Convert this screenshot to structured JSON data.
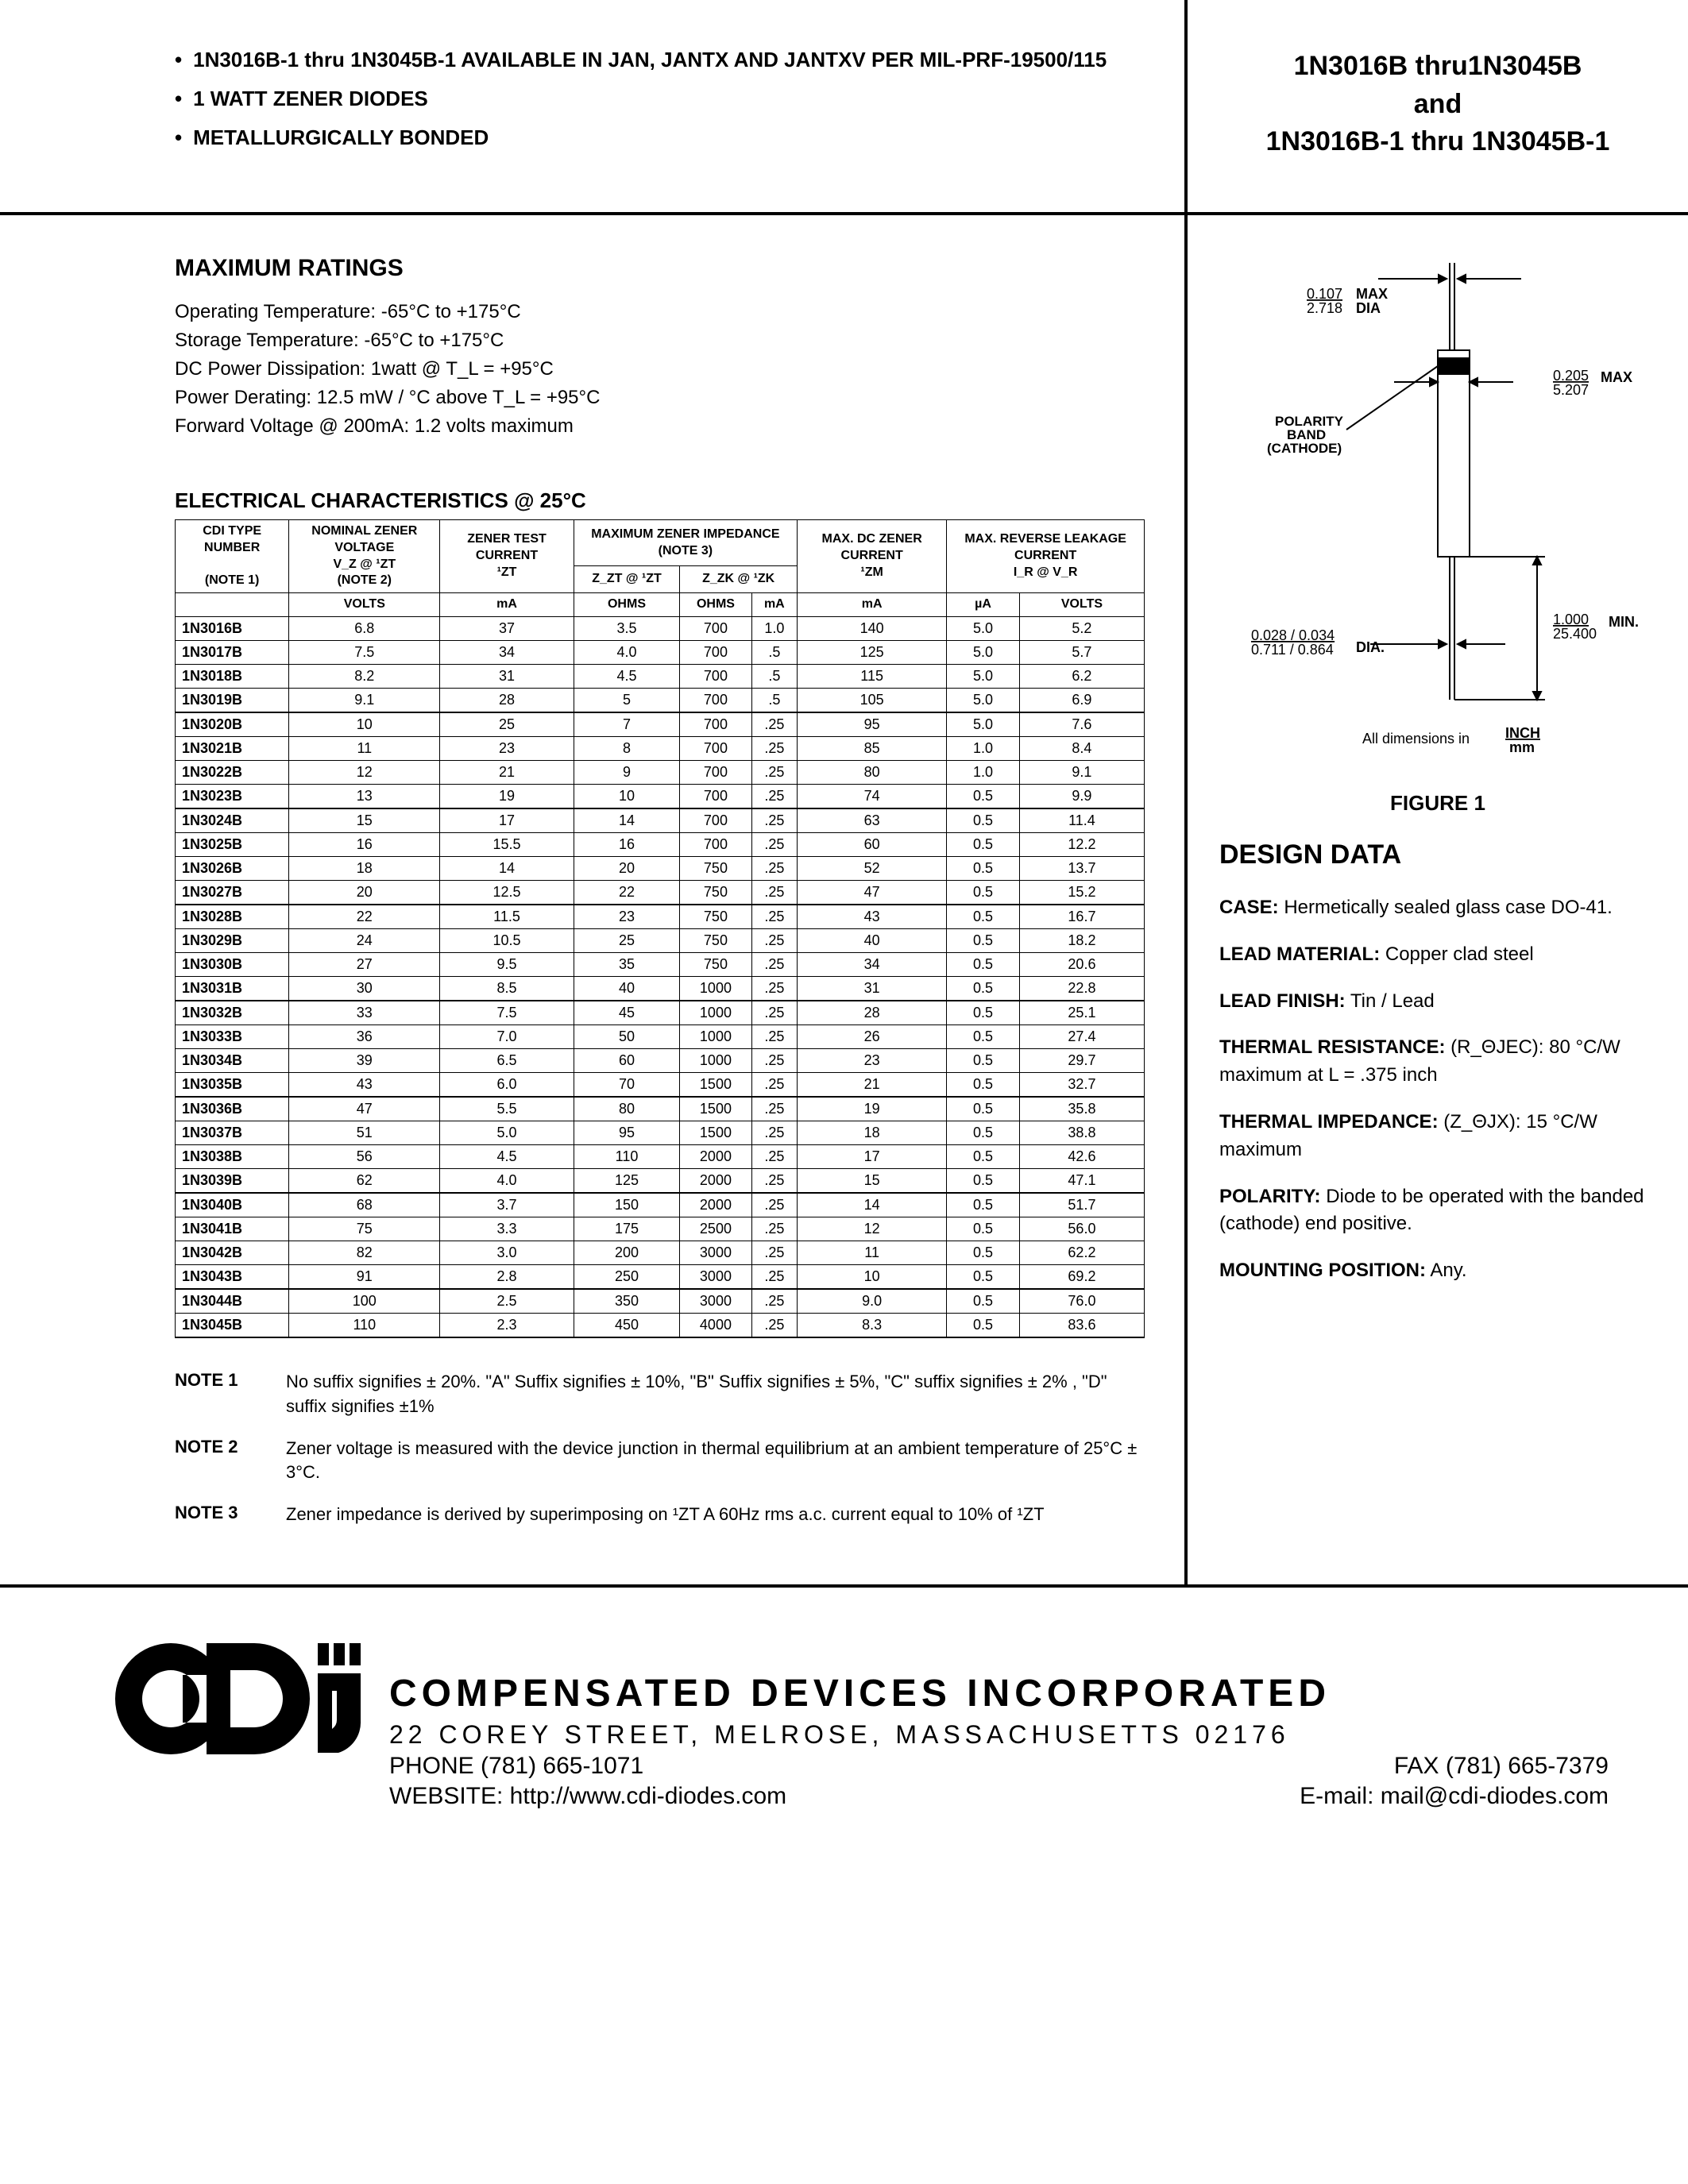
{
  "header": {
    "bullets": [
      "1N3016B-1 thru 1N3045B-1 AVAILABLE IN JAN, JANTX AND JANTXV PER MIL-PRF-19500/115",
      "1 WATT ZENER DIODES",
      "METALLURGICALLY BONDED"
    ],
    "title_lines": [
      "1N3016B thru1N3045B",
      "and",
      "1N3016B-1 thru 1N3045B-1"
    ]
  },
  "max_ratings": {
    "title": "MAXIMUM RATINGS",
    "lines": [
      "Operating Temperature:  -65°C to +175°C",
      "Storage Temperature:  -65°C to +175°C",
      "DC Power Dissipation:  1watt @ T_L = +95°C",
      "Power Derating: 12.5 mW / °C above T_L = +95°C",
      "Forward Voltage @ 200mA: 1.2 volts maximum"
    ]
  },
  "elec": {
    "title": "ELECTRICAL CHARACTERISTICS @ 25°C",
    "headers": {
      "c1": "CDI TYPE NUMBER",
      "c1n": "(NOTE 1)",
      "c2": "NOMINAL ZENER VOLTAGE",
      "c2s": "V_Z @ ¹ZT",
      "c2n": "(NOTE 2)",
      "c3": "ZENER TEST CURRENT",
      "c3s": "¹ZT",
      "c45": "MAXIMUM  ZENER IMPEDANCE (NOTE 3)",
      "c4": "Z_ZT @ ¹ZT",
      "c5": "Z_ZK @ ¹ZK",
      "c6": "MAX. DC ZENER CURRENT",
      "c6s": "¹ZM",
      "c78": "MAX. REVERSE LEAKAGE CURRENT",
      "c78s": "I_R @ V_R",
      "u1": "VOLTS",
      "u2": "mA",
      "u3": "OHMS",
      "u4": "OHMS",
      "u5": "mA",
      "u6": "mA",
      "u7": "µA",
      "u8": "VOLTS"
    },
    "rows": [
      {
        "p": "1N3016B",
        "v": [
          6.8,
          37,
          3.5,
          700,
          "1.0",
          140,
          "5.0",
          5.2
        ]
      },
      {
        "p": "1N3017B",
        "v": [
          7.5,
          34,
          "4.0",
          700,
          ".5",
          125,
          "5.0",
          5.7
        ]
      },
      {
        "p": "1N3018B",
        "v": [
          8.2,
          31,
          4.5,
          700,
          ".5",
          115,
          "5.0",
          6.2
        ]
      },
      {
        "p": "1N3019B",
        "v": [
          9.1,
          28,
          5,
          700,
          ".5",
          105,
          "5.0",
          6.9
        ],
        "end": true
      },
      {
        "p": "1N3020B",
        "v": [
          10,
          25,
          7,
          700,
          ".25",
          95,
          "5.0",
          7.6
        ]
      },
      {
        "p": "1N3021B",
        "v": [
          11,
          23,
          8,
          700,
          ".25",
          85,
          "1.0",
          8.4
        ]
      },
      {
        "p": "1N3022B",
        "v": [
          12,
          21,
          9,
          700,
          ".25",
          80,
          "1.0",
          9.1
        ]
      },
      {
        "p": "1N3023B",
        "v": [
          13,
          19,
          10,
          700,
          ".25",
          74,
          0.5,
          9.9
        ],
        "end": true
      },
      {
        "p": "1N3024B",
        "v": [
          15,
          17,
          14,
          700,
          ".25",
          63,
          0.5,
          11.4
        ]
      },
      {
        "p": "1N3025B",
        "v": [
          16,
          15.5,
          16,
          700,
          ".25",
          60,
          0.5,
          12.2
        ]
      },
      {
        "p": "1N3026B",
        "v": [
          18,
          14,
          20,
          750,
          ".25",
          52,
          0.5,
          13.7
        ]
      },
      {
        "p": "1N3027B",
        "v": [
          20,
          12.5,
          22,
          750,
          ".25",
          47,
          0.5,
          15.2
        ],
        "end": true
      },
      {
        "p": "1N3028B",
        "v": [
          22,
          11.5,
          23,
          750,
          ".25",
          43,
          0.5,
          16.7
        ]
      },
      {
        "p": "1N3029B",
        "v": [
          24,
          10.5,
          25,
          750,
          ".25",
          40,
          0.5,
          18.2
        ]
      },
      {
        "p": "1N3030B",
        "v": [
          27,
          9.5,
          35,
          750,
          ".25",
          34,
          0.5,
          20.6
        ]
      },
      {
        "p": "1N3031B",
        "v": [
          30,
          8.5,
          40,
          1000,
          ".25",
          31,
          0.5,
          22.8
        ],
        "end": true
      },
      {
        "p": "1N3032B",
        "v": [
          33,
          7.5,
          45,
          1000,
          ".25",
          28,
          0.5,
          25.1
        ]
      },
      {
        "p": "1N3033B",
        "v": [
          36,
          "7.0",
          50,
          1000,
          ".25",
          26,
          0.5,
          27.4
        ]
      },
      {
        "p": "1N3034B",
        "v": [
          39,
          6.5,
          60,
          1000,
          ".25",
          23,
          0.5,
          29.7
        ]
      },
      {
        "p": "1N3035B",
        "v": [
          43,
          "6.0",
          70,
          1500,
          ".25",
          21,
          0.5,
          32.7
        ],
        "end": true
      },
      {
        "p": "1N3036B",
        "v": [
          47,
          5.5,
          80,
          1500,
          ".25",
          19,
          0.5,
          35.8
        ]
      },
      {
        "p": "1N3037B",
        "v": [
          51,
          "5.0",
          95,
          1500,
          ".25",
          18,
          0.5,
          38.8
        ]
      },
      {
        "p": "1N3038B",
        "v": [
          56,
          4.5,
          110,
          2000,
          ".25",
          17,
          0.5,
          42.6
        ]
      },
      {
        "p": "1N3039B",
        "v": [
          62,
          "4.0",
          125,
          2000,
          ".25",
          15,
          0.5,
          47.1
        ],
        "end": true
      },
      {
        "p": "1N3040B",
        "v": [
          68,
          3.7,
          150,
          2000,
          ".25",
          14,
          0.5,
          51.7
        ]
      },
      {
        "p": "1N3041B",
        "v": [
          75,
          3.3,
          175,
          2500,
          ".25",
          12,
          0.5,
          "56.0"
        ]
      },
      {
        "p": "1N3042B",
        "v": [
          82,
          "3.0",
          200,
          3000,
          ".25",
          11,
          0.5,
          62.2
        ]
      },
      {
        "p": "1N3043B",
        "v": [
          91,
          2.8,
          250,
          3000,
          ".25",
          10,
          0.5,
          69.2
        ],
        "end": true
      },
      {
        "p": "1N3044B",
        "v": [
          100,
          2.5,
          350,
          3000,
          ".25",
          "9.0",
          0.5,
          "76.0"
        ]
      },
      {
        "p": "1N3045B",
        "v": [
          110,
          2.3,
          450,
          4000,
          ".25",
          8.3,
          0.5,
          83.6
        ],
        "end": true
      }
    ]
  },
  "notes": [
    {
      "label": "NOTE 1",
      "text": "No suffix signifies ± 20%. \"A\" Suffix signifies ± 10%, \"B\" Suffix signifies ± 5%, \"C\" suffix signifies ± 2% , \"D\" suffix signifies ±1%"
    },
    {
      "label": "NOTE 2",
      "text": "Zener voltage is measured with the device junction in thermal equilibrium at an ambient temperature of 25°C ± 3°C."
    },
    {
      "label": "NOTE 3",
      "text": "Zener impedance is derived by superimposing on ¹ZT A 60Hz rms a.c. current equal to 10% of ¹ZT"
    }
  ],
  "figure": {
    "caption": "FIGURE 1",
    "dim_top": "0.107 / 2.718",
    "dim_top_label": "MAX DIA",
    "dim_width": "0.205 / 5.207",
    "dim_width_label": "MAX",
    "polarity": "POLARITY BAND (CATHODE)",
    "dim_lead": "1.000 / 25.400",
    "dim_lead_label": "MIN.",
    "dim_dia": "0.028 / 0.034 / 0.711 / 0.864",
    "dim_dia_label": "DIA.",
    "units": "All dimensions in",
    "units_frac": "INCH / mm"
  },
  "design": {
    "title": "DESIGN DATA",
    "items": [
      {
        "label": "CASE:",
        "text": "  Hermetically sealed glass case DO-41."
      },
      {
        "label": "LEAD MATERIAL:",
        "text": " Copper clad steel"
      },
      {
        "label": "LEAD FINISH:",
        "text": " Tin / Lead"
      },
      {
        "label": "THERMAL RESISTANCE:",
        "text": " (R_ΘJEC): 80 °C/W maximum at L = .375 inch"
      },
      {
        "label": "THERMAL IMPEDANCE:",
        "text": " (Z_ΘJX): 15 °C/W maximum"
      },
      {
        "label": "POLARITY:",
        "text": " Diode to be operated with the banded (cathode) end positive."
      },
      {
        "label": "MOUNTING POSITION:",
        "text": " Any."
      }
    ]
  },
  "footer": {
    "company": "COMPENSATED DEVICES INCORPORATED",
    "address": "22 COREY STREET, MELROSE, MASSACHUSETTS 02176",
    "phone": "PHONE (781) 665-1071",
    "fax": "FAX (781) 665-7379",
    "website": "WEBSITE:  http://www.cdi-diodes.com",
    "email": "E-mail: mail@cdi-diodes.com"
  }
}
